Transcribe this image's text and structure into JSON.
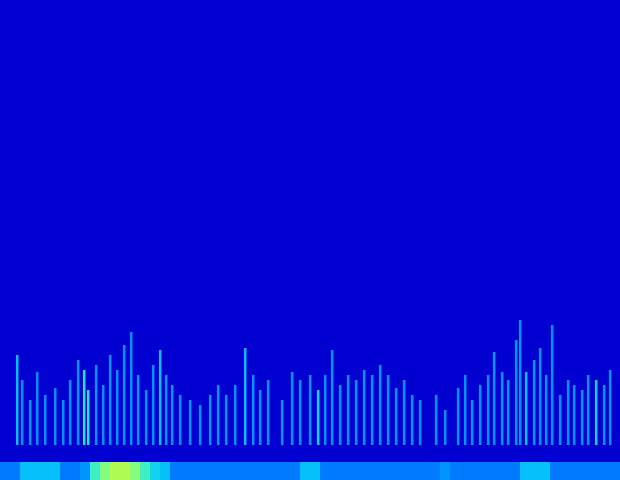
{
  "chart_data": {
    "type": "heatmap",
    "tick_labels": false,
    "xlim": [
      0,
      620
    ],
    "ylim": [
      0,
      480
    ],
    "zlim": [
      0,
      1
    ],
    "floor": 35,
    "band_top": 18,
    "spikes": [
      [
        17,
        125,
        0.45
      ],
      [
        22,
        100,
        0.35
      ],
      [
        30,
        80,
        0.35
      ],
      [
        37,
        108,
        0.35
      ],
      [
        45,
        85,
        0.35
      ],
      [
        55,
        92,
        0.35
      ],
      [
        63,
        80,
        0.35
      ],
      [
        70,
        100,
        0.35
      ],
      [
        78,
        120,
        0.35
      ],
      [
        84,
        110,
        0.55
      ],
      [
        88,
        90,
        0.55
      ],
      [
        96,
        115,
        0.35
      ],
      [
        103,
        95,
        0.35
      ],
      [
        110,
        125,
        0.35
      ],
      [
        117,
        110,
        0.35
      ],
      [
        124,
        135,
        0.35
      ],
      [
        131,
        148,
        0.35
      ],
      [
        138,
        105,
        0.35
      ],
      [
        146,
        90,
        0.35
      ],
      [
        153,
        115,
        0.35
      ],
      [
        160,
        130,
        0.45
      ],
      [
        166,
        105,
        0.35
      ],
      [
        172,
        95,
        0.35
      ],
      [
        180,
        85,
        0.35
      ],
      [
        190,
        80,
        0.35
      ],
      [
        200,
        75,
        0.35
      ],
      [
        210,
        85,
        0.35
      ],
      [
        218,
        95,
        0.35
      ],
      [
        226,
        85,
        0.35
      ],
      [
        235,
        95,
        0.35
      ],
      [
        245,
        132,
        0.45
      ],
      [
        253,
        105,
        0.35
      ],
      [
        260,
        90,
        0.35
      ],
      [
        268,
        100,
        0.35
      ],
      [
        282,
        80,
        0.35
      ],
      [
        292,
        108,
        0.35
      ],
      [
        300,
        100,
        0.35
      ],
      [
        310,
        105,
        0.35
      ],
      [
        318,
        90,
        0.5
      ],
      [
        325,
        105,
        0.35
      ],
      [
        332,
        130,
        0.35
      ],
      [
        340,
        95,
        0.35
      ],
      [
        348,
        105,
        0.35
      ],
      [
        356,
        100,
        0.35
      ],
      [
        364,
        110,
        0.35
      ],
      [
        372,
        105,
        0.35
      ],
      [
        380,
        115,
        0.35
      ],
      [
        388,
        105,
        0.35
      ],
      [
        396,
        92,
        0.35
      ],
      [
        404,
        100,
        0.35
      ],
      [
        412,
        85,
        0.35
      ],
      [
        420,
        80,
        0.35
      ],
      [
        436,
        85,
        0.35
      ],
      [
        445,
        70,
        0.35
      ],
      [
        458,
        92,
        0.35
      ],
      [
        465,
        105,
        0.35
      ],
      [
        472,
        80,
        0.35
      ],
      [
        480,
        95,
        0.35
      ],
      [
        488,
        105,
        0.35
      ],
      [
        494,
        128,
        0.35
      ],
      [
        502,
        108,
        0.35
      ],
      [
        508,
        100,
        0.35
      ],
      [
        516,
        140,
        0.35
      ],
      [
        520,
        160,
        0.35
      ],
      [
        526,
        108,
        0.45
      ],
      [
        534,
        120,
        0.35
      ],
      [
        540,
        132,
        0.35
      ],
      [
        546,
        105,
        0.35
      ],
      [
        552,
        155,
        0.35
      ],
      [
        560,
        85,
        0.35
      ],
      [
        568,
        100,
        0.35
      ],
      [
        574,
        95,
        0.35
      ],
      [
        582,
        90,
        0.35
      ],
      [
        588,
        105,
        0.35
      ],
      [
        596,
        100,
        0.5
      ],
      [
        604,
        95,
        0.35
      ],
      [
        610,
        110,
        0.35
      ]
    ],
    "band": [
      [
        0,
        0.3
      ],
      [
        10,
        0.3
      ],
      [
        20,
        0.45
      ],
      [
        30,
        0.45
      ],
      [
        40,
        0.45
      ],
      [
        50,
        0.45
      ],
      [
        60,
        0.3
      ],
      [
        70,
        0.3
      ],
      [
        80,
        0.35
      ],
      [
        90,
        0.6
      ],
      [
        100,
        0.7
      ],
      [
        110,
        0.75
      ],
      [
        120,
        0.75
      ],
      [
        130,
        0.7
      ],
      [
        140,
        0.6
      ],
      [
        150,
        0.5
      ],
      [
        160,
        0.45
      ],
      [
        170,
        0.3
      ],
      [
        180,
        0.3
      ],
      [
        190,
        0.3
      ],
      [
        200,
        0.3
      ],
      [
        210,
        0.3
      ],
      [
        220,
        0.3
      ],
      [
        230,
        0.3
      ],
      [
        240,
        0.3
      ],
      [
        250,
        0.3
      ],
      [
        260,
        0.3
      ],
      [
        270,
        0.3
      ],
      [
        280,
        0.3
      ],
      [
        290,
        0.3
      ],
      [
        300,
        0.45
      ],
      [
        310,
        0.45
      ],
      [
        320,
        0.3
      ],
      [
        330,
        0.3
      ],
      [
        340,
        0.3
      ],
      [
        350,
        0.3
      ],
      [
        360,
        0.3
      ],
      [
        370,
        0.3
      ],
      [
        380,
        0.3
      ],
      [
        390,
        0.3
      ],
      [
        400,
        0.3
      ],
      [
        410,
        0.3
      ],
      [
        420,
        0.3
      ],
      [
        430,
        0.3
      ],
      [
        440,
        0.35
      ],
      [
        450,
        0.3
      ],
      [
        460,
        0.3
      ],
      [
        470,
        0.3
      ],
      [
        480,
        0.3
      ],
      [
        490,
        0.3
      ],
      [
        500,
        0.3
      ],
      [
        510,
        0.3
      ],
      [
        520,
        0.45
      ],
      [
        530,
        0.45
      ],
      [
        540,
        0.45
      ],
      [
        550,
        0.3
      ],
      [
        560,
        0.3
      ],
      [
        570,
        0.3
      ],
      [
        580,
        0.3
      ],
      [
        590,
        0.3
      ],
      [
        600,
        0.3
      ],
      [
        610,
        0.3
      ]
    ]
  }
}
